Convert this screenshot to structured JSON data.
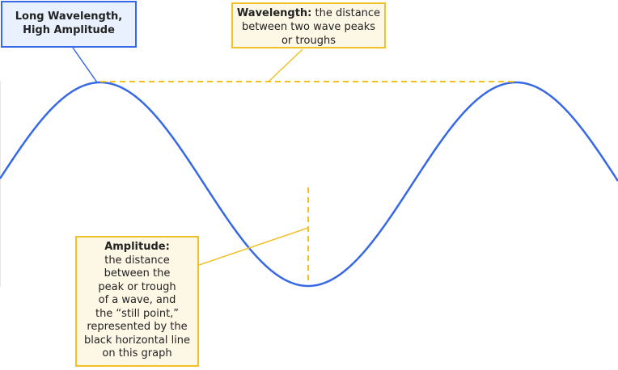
{
  "colors": {
    "wave": "#3768e6",
    "measure_line": "#f1c12a",
    "blue_box_fill": "#e8f1fd",
    "blue_box_border": "#3768e6",
    "yellow_box_fill": "#fdf7e6",
    "yellow_box_border": "#f1c12a"
  },
  "labels": {
    "wave_label": {
      "lines": [
        "Long Wavelength,",
        "High Amplitude"
      ]
    },
    "wavelength": {
      "term": "Wavelength:",
      "line1_rest": " the distance",
      "line2": "between two wave peaks",
      "line3": "or troughs"
    },
    "amplitude": {
      "term": "Amplitude:",
      "lines": [
        "the distance",
        "between the",
        "peak or trough",
        "of a wave, and",
        "the “still point,”",
        "represented by the",
        "black horizontal line",
        "on this graph"
      ]
    }
  }
}
